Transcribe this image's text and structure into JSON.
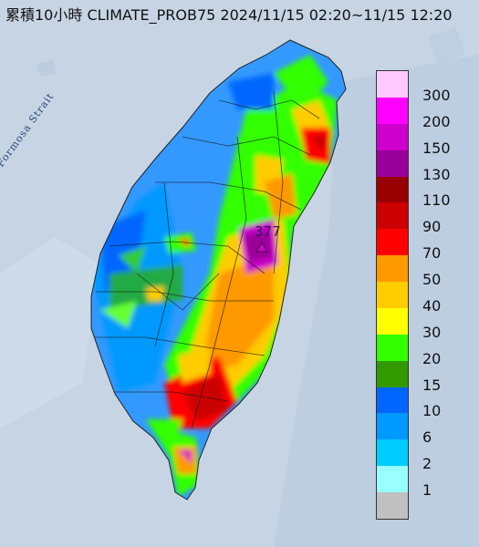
{
  "title": "累積10小時 CLIMATE_PROB75 2024/11/15 02:20~11/15 12:20",
  "strait_label": "Formosa Strait",
  "peak_value": "377",
  "legend": {
    "labels": [
      "300",
      "200",
      "150",
      "130",
      "110",
      "90",
      "70",
      "50",
      "40",
      "30",
      "20",
      "15",
      "10",
      "6",
      "2",
      "1"
    ],
    "colors": [
      "#ffc8ff",
      "#ff00ff",
      "#cc00cc",
      "#990099",
      "#990000",
      "#cc0000",
      "#ff0000",
      "#ff9900",
      "#ffcc00",
      "#ffff00",
      "#33ff00",
      "#339900",
      "#0066ff",
      "#0099ff",
      "#00ccff",
      "#99ffff",
      "#c0c0c0"
    ]
  }
}
